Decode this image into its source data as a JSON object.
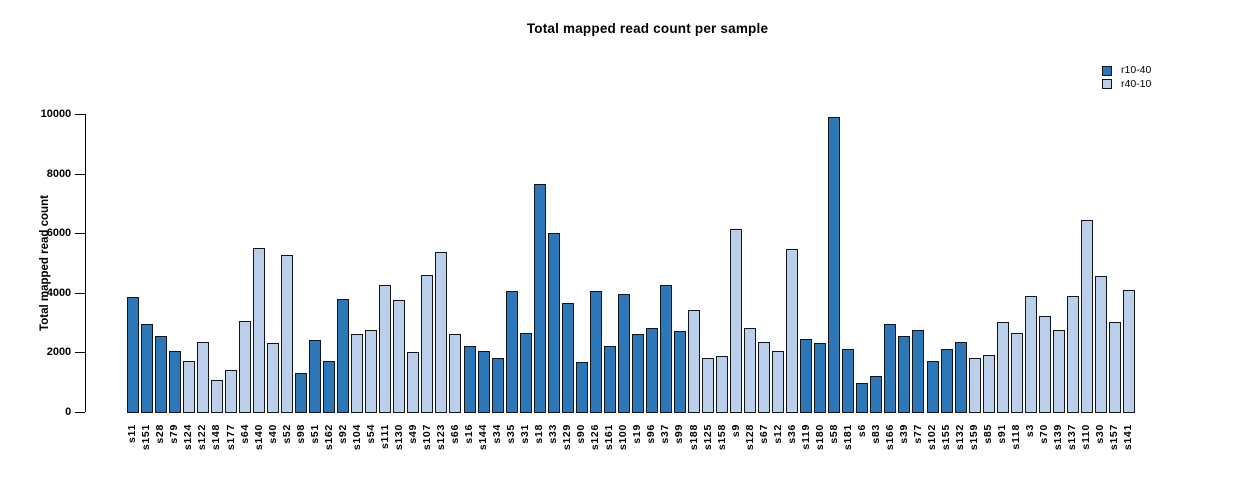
{
  "title": "Total mapped read count per sample",
  "legend": {
    "items": [
      {
        "label": "r10-40",
        "color": "#2b77b7"
      },
      {
        "label": "r40-10",
        "color": "#bbcfeb"
      }
    ]
  },
  "chart_data": {
    "type": "bar",
    "title": "Total mapped read count per sample",
    "xlabel": "",
    "ylabel": "Total mapped read count",
    "ylim": [
      0,
      10000
    ],
    "yticks": [
      0,
      2000,
      4000,
      6000,
      8000,
      10000
    ],
    "grid": false,
    "legend_position": "top-right",
    "series": [
      {
        "name": "r10-40",
        "color": "#2b77b7"
      },
      {
        "name": "r40-10",
        "color": "#bbcfeb"
      }
    ],
    "bar_border_color": "#12161c",
    "bars": [
      {
        "label": "s11",
        "series": "r10-40",
        "value": 3850
      },
      {
        "label": "s151",
        "series": "r10-40",
        "value": 2950
      },
      {
        "label": "s28",
        "series": "r10-40",
        "value": 2550
      },
      {
        "label": "s79",
        "series": "r10-40",
        "value": 2050
      },
      {
        "label": "s124",
        "series": "r40-10",
        "value": 1700
      },
      {
        "label": "s122",
        "series": "r40-10",
        "value": 2350
      },
      {
        "label": "s148",
        "series": "r40-10",
        "value": 1050
      },
      {
        "label": "s177",
        "series": "r40-10",
        "value": 1400
      },
      {
        "label": "s64",
        "series": "r40-10",
        "value": 3050
      },
      {
        "label": "s140",
        "series": "r40-10",
        "value": 5500
      },
      {
        "label": "s40",
        "series": "r40-10",
        "value": 2300
      },
      {
        "label": "s52",
        "series": "r40-10",
        "value": 5250
      },
      {
        "label": "s98",
        "series": "r10-40",
        "value": 1300
      },
      {
        "label": "s51",
        "series": "r10-40",
        "value": 2400
      },
      {
        "label": "s162",
        "series": "r10-40",
        "value": 1700
      },
      {
        "label": "s92",
        "series": "r10-40",
        "value": 3800
      },
      {
        "label": "s104",
        "series": "r40-10",
        "value": 2600
      },
      {
        "label": "s54",
        "series": "r40-10",
        "value": 2750
      },
      {
        "label": "s111",
        "series": "r40-10",
        "value": 4250
      },
      {
        "label": "s130",
        "series": "r40-10",
        "value": 3750
      },
      {
        "label": "s49",
        "series": "r40-10",
        "value": 2000
      },
      {
        "label": "s107",
        "series": "r40-10",
        "value": 4600
      },
      {
        "label": "s123",
        "series": "r40-10",
        "value": 5350
      },
      {
        "label": "s66",
        "series": "r40-10",
        "value": 2600
      },
      {
        "label": "s16",
        "series": "r10-40",
        "value": 2200
      },
      {
        "label": "s144",
        "series": "r10-40",
        "value": 2050
      },
      {
        "label": "s34",
        "series": "r10-40",
        "value": 1800
      },
      {
        "label": "s35",
        "series": "r10-40",
        "value": 4050
      },
      {
        "label": "s31",
        "series": "r10-40",
        "value": 2650
      },
      {
        "label": "s18",
        "series": "r10-40",
        "value": 7650
      },
      {
        "label": "s33",
        "series": "r10-40",
        "value": 6000
      },
      {
        "label": "s129",
        "series": "r10-40",
        "value": 3650
      },
      {
        "label": "s90",
        "series": "r10-40",
        "value": 1650
      },
      {
        "label": "s126",
        "series": "r10-40",
        "value": 4050
      },
      {
        "label": "s161",
        "series": "r10-40",
        "value": 2200
      },
      {
        "label": "s100",
        "series": "r10-40",
        "value": 3950
      },
      {
        "label": "s19",
        "series": "r10-40",
        "value": 2600
      },
      {
        "label": "s96",
        "series": "r10-40",
        "value": 2800
      },
      {
        "label": "s37",
        "series": "r10-40",
        "value": 4250
      },
      {
        "label": "s99",
        "series": "r10-40",
        "value": 2700
      },
      {
        "label": "s188",
        "series": "r40-10",
        "value": 3400
      },
      {
        "label": "s125",
        "series": "r40-10",
        "value": 1800
      },
      {
        "label": "s158",
        "series": "r40-10",
        "value": 1850
      },
      {
        "label": "s9",
        "series": "r40-10",
        "value": 6150
      },
      {
        "label": "s128",
        "series": "r40-10",
        "value": 2800
      },
      {
        "label": "s67",
        "series": "r40-10",
        "value": 2350
      },
      {
        "label": "s12",
        "series": "r40-10",
        "value": 2050
      },
      {
        "label": "s36",
        "series": "r40-10",
        "value": 5450
      },
      {
        "label": "s119",
        "series": "r10-40",
        "value": 2450
      },
      {
        "label": "s180",
        "series": "r10-40",
        "value": 2300
      },
      {
        "label": "s58",
        "series": "r10-40",
        "value": 9900
      },
      {
        "label": "s181",
        "series": "r10-40",
        "value": 2100
      },
      {
        "label": "s6",
        "series": "r10-40",
        "value": 950
      },
      {
        "label": "s83",
        "series": "r10-40",
        "value": 1200
      },
      {
        "label": "s166",
        "series": "r10-40",
        "value": 2950
      },
      {
        "label": "s39",
        "series": "r10-40",
        "value": 2550
      },
      {
        "label": "s77",
        "series": "r10-40",
        "value": 2750
      },
      {
        "label": "s102",
        "series": "r10-40",
        "value": 1700
      },
      {
        "label": "s155",
        "series": "r10-40",
        "value": 2100
      },
      {
        "label": "s132",
        "series": "r10-40",
        "value": 2350
      },
      {
        "label": "s159",
        "series": "r40-10",
        "value": 1800
      },
      {
        "label": "s85",
        "series": "r40-10",
        "value": 1900
      },
      {
        "label": "s91",
        "series": "r40-10",
        "value": 3000
      },
      {
        "label": "s118",
        "series": "r40-10",
        "value": 2650
      },
      {
        "label": "s3",
        "series": "r40-10",
        "value": 3900
      },
      {
        "label": "s70",
        "series": "r40-10",
        "value": 3200
      },
      {
        "label": "s139",
        "series": "r40-10",
        "value": 2750
      },
      {
        "label": "s137",
        "series": "r40-10",
        "value": 3900
      },
      {
        "label": "s110",
        "series": "r40-10",
        "value": 6450
      },
      {
        "label": "s30",
        "series": "r40-10",
        "value": 4550
      },
      {
        "label": "s157",
        "series": "r40-10",
        "value": 3000
      },
      {
        "label": "s141",
        "series": "r40-10",
        "value": 4100
      }
    ]
  }
}
